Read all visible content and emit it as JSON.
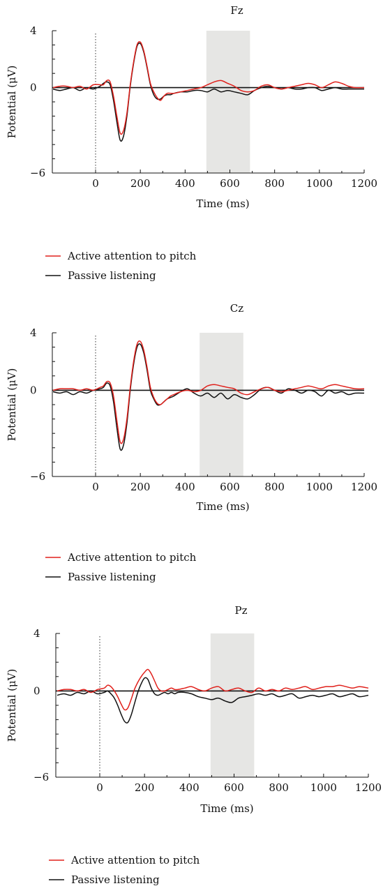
{
  "figure": {
    "legend": {
      "active_label": "Active attention to pitch",
      "passive_label": "Passive listening"
    }
  },
  "chart_data": [
    {
      "type": "line",
      "title": "Fz",
      "xlabel": "Time (ms)",
      "ylabel": "Potential (μV)",
      "xlim": [
        -190,
        1200
      ],
      "ylim": [
        -6,
        4
      ],
      "xticks": [
        0,
        200,
        400,
        600,
        800,
        1000,
        1200
      ],
      "xtick_labels": [
        "0",
        "200",
        "400",
        "600",
        "800",
        "1000",
        "1200"
      ],
      "yticks": [
        4,
        0,
        -6
      ],
      "ytick_labels": [
        "4",
        "0",
        "−6"
      ],
      "stimulus_onset": 0,
      "shaded_window": [
        495,
        690
      ],
      "grid": false,
      "legend_position": "bottom-left",
      "colors": {
        "active": "#e0201b",
        "passive": "#111111"
      },
      "series": [
        {
          "name": "Active attention to pitch",
          "color": "#e0201b",
          "x": [
            -190,
            -160,
            -130,
            -100,
            -70,
            -40,
            -10,
            20,
            35,
            50,
            65,
            80,
            95,
            110,
            125,
            140,
            155,
            170,
            185,
            200,
            215,
            230,
            245,
            260,
            275,
            290,
            305,
            320,
            335,
            350,
            380,
            410,
            440,
            470,
            500,
            530,
            560,
            590,
            620,
            650,
            680,
            710,
            740,
            770,
            800,
            830,
            860,
            890,
            920,
            950,
            980,
            1010,
            1040,
            1070,
            1100,
            1130,
            1160,
            1200
          ],
          "y": [
            0.0,
            0.1,
            0.1,
            0.0,
            0.1,
            -0.1,
            0.2,
            0.2,
            0.2,
            0.5,
            0.4,
            -0.6,
            -2.0,
            -3.2,
            -3.0,
            -1.8,
            0.2,
            1.8,
            3.0,
            3.2,
            2.6,
            1.5,
            0.3,
            -0.3,
            -0.7,
            -0.9,
            -0.6,
            -0.4,
            -0.4,
            -0.4,
            -0.3,
            -0.2,
            -0.1,
            0.0,
            0.2,
            0.4,
            0.5,
            0.3,
            0.1,
            -0.2,
            -0.3,
            -0.2,
            0.1,
            0.2,
            0.0,
            -0.1,
            0.0,
            0.1,
            0.2,
            0.3,
            0.2,
            0.0,
            0.2,
            0.4,
            0.3,
            0.1,
            0.0,
            0.0
          ]
        },
        {
          "name": "Passive listening",
          "color": "#111111",
          "x": [
            -190,
            -160,
            -130,
            -100,
            -70,
            -40,
            -10,
            20,
            35,
            50,
            65,
            80,
            95,
            110,
            125,
            140,
            155,
            170,
            185,
            200,
            215,
            230,
            245,
            260,
            275,
            290,
            305,
            320,
            335,
            350,
            380,
            410,
            440,
            470,
            500,
            530,
            560,
            590,
            620,
            650,
            680,
            710,
            740,
            770,
            800,
            830,
            860,
            890,
            920,
            950,
            980,
            1010,
            1040,
            1070,
            1100,
            1130,
            1160,
            1200
          ],
          "y": [
            -0.1,
            -0.2,
            -0.1,
            0.0,
            -0.2,
            0.0,
            -0.1,
            0.1,
            0.3,
            0.4,
            0.2,
            -0.9,
            -2.4,
            -3.7,
            -3.4,
            -2.0,
            0.1,
            1.7,
            2.9,
            3.1,
            2.5,
            1.4,
            0.2,
            -0.5,
            -0.8,
            -0.8,
            -0.6,
            -0.5,
            -0.5,
            -0.4,
            -0.3,
            -0.3,
            -0.2,
            -0.2,
            -0.3,
            -0.1,
            -0.3,
            -0.2,
            -0.3,
            -0.4,
            -0.5,
            -0.2,
            0.0,
            0.1,
            0.0,
            -0.1,
            0.0,
            -0.1,
            -0.1,
            0.0,
            0.0,
            -0.2,
            -0.1,
            0.0,
            -0.1,
            -0.1,
            -0.1,
            -0.1
          ]
        }
      ]
    },
    {
      "type": "line",
      "title": "Cz",
      "xlabel": "Time (ms)",
      "ylabel": "Potential (μV)",
      "xlim": [
        -190,
        1200
      ],
      "ylim": [
        -6,
        4
      ],
      "xticks": [
        0,
        200,
        400,
        600,
        800,
        1000,
        1200
      ],
      "xtick_labels": [
        "0",
        "200",
        "400",
        "600",
        "800",
        "1000",
        "1200"
      ],
      "yticks": [
        4,
        0,
        -6
      ],
      "ytick_labels": [
        "4",
        "0",
        "−6"
      ],
      "stimulus_onset": 0,
      "shaded_window": [
        465,
        660
      ],
      "grid": false,
      "legend_position": "bottom-left",
      "colors": {
        "active": "#e0201b",
        "passive": "#111111"
      },
      "series": [
        {
          "name": "Active attention to pitch",
          "color": "#e0201b",
          "x": [
            -190,
            -160,
            -130,
            -100,
            -70,
            -40,
            -10,
            20,
            35,
            50,
            65,
            80,
            95,
            110,
            125,
            140,
            155,
            170,
            185,
            200,
            215,
            230,
            245,
            260,
            275,
            290,
            305,
            320,
            335,
            350,
            380,
            410,
            440,
            470,
            500,
            530,
            560,
            590,
            620,
            650,
            680,
            710,
            740,
            770,
            800,
            830,
            860,
            890,
            920,
            950,
            980,
            1010,
            1040,
            1070,
            1100,
            1130,
            1160,
            1200
          ],
          "y": [
            0.0,
            0.1,
            0.1,
            0.1,
            0.0,
            0.1,
            0.0,
            0.2,
            0.3,
            0.6,
            0.5,
            -0.4,
            -2.1,
            -3.6,
            -3.4,
            -2.0,
            0.2,
            2.0,
            3.2,
            3.4,
            2.8,
            1.6,
            0.2,
            -0.5,
            -0.9,
            -1.0,
            -0.8,
            -0.6,
            -0.4,
            -0.3,
            -0.1,
            0.0,
            -0.1,
            0.0,
            0.3,
            0.4,
            0.3,
            0.2,
            0.1,
            -0.2,
            -0.3,
            -0.1,
            0.1,
            0.2,
            0.0,
            -0.1,
            0.0,
            0.1,
            0.2,
            0.3,
            0.2,
            0.1,
            0.3,
            0.4,
            0.3,
            0.2,
            0.1,
            0.1
          ]
        },
        {
          "name": "Passive listening",
          "color": "#111111",
          "x": [
            -190,
            -160,
            -130,
            -100,
            -70,
            -40,
            -10,
            20,
            35,
            50,
            65,
            80,
            95,
            110,
            125,
            140,
            155,
            170,
            185,
            200,
            215,
            230,
            245,
            260,
            275,
            290,
            305,
            320,
            335,
            350,
            380,
            410,
            440,
            470,
            500,
            530,
            560,
            590,
            620,
            650,
            680,
            710,
            740,
            770,
            800,
            830,
            860,
            890,
            920,
            950,
            980,
            1010,
            1040,
            1070,
            1100,
            1130,
            1160,
            1200
          ],
          "y": [
            -0.1,
            -0.2,
            -0.1,
            -0.3,
            -0.1,
            -0.2,
            0.0,
            0.1,
            0.2,
            0.5,
            0.3,
            -0.8,
            -2.6,
            -4.1,
            -3.8,
            -2.3,
            0.0,
            1.8,
            3.0,
            3.2,
            2.6,
            1.4,
            0.0,
            -0.6,
            -1.0,
            -1.0,
            -0.8,
            -0.6,
            -0.5,
            -0.4,
            -0.1,
            0.1,
            -0.2,
            -0.4,
            -0.2,
            -0.5,
            -0.2,
            -0.6,
            -0.3,
            -0.5,
            -0.6,
            -0.3,
            0.1,
            0.2,
            0.0,
            -0.2,
            0.1,
            0.0,
            -0.2,
            0.0,
            -0.1,
            -0.4,
            0.0,
            -0.2,
            -0.1,
            -0.3,
            -0.2,
            -0.2
          ]
        }
      ]
    },
    {
      "type": "line",
      "title": "Pz",
      "xlabel": "Time (ms)",
      "ylabel": "Potential (μV)",
      "xlim": [
        -190,
        1200
      ],
      "ylim": [
        -6,
        4
      ],
      "xticks": [
        0,
        200,
        400,
        600,
        800,
        1000,
        1200
      ],
      "xtick_labels": [
        "0",
        "200",
        "400",
        "600",
        "800",
        "1000",
        "1200"
      ],
      "yticks": [
        4,
        0,
        -6
      ],
      "ytick_labels": [
        "4",
        "0",
        "−6"
      ],
      "stimulus_onset": 0,
      "shaded_window": [
        495,
        690
      ],
      "grid": false,
      "legend_position": "bottom-left",
      "colors": {
        "active": "#e0201b",
        "passive": "#111111"
      },
      "series": [
        {
          "name": "Active attention to pitch",
          "color": "#e0201b",
          "x": [
            -190,
            -160,
            -130,
            -100,
            -70,
            -40,
            -10,
            20,
            35,
            50,
            65,
            80,
            95,
            110,
            125,
            140,
            155,
            170,
            185,
            200,
            215,
            230,
            245,
            260,
            275,
            290,
            305,
            320,
            335,
            350,
            380,
            410,
            440,
            470,
            500,
            530,
            560,
            590,
            620,
            650,
            680,
            710,
            740,
            770,
            800,
            830,
            860,
            890,
            920,
            950,
            980,
            1010,
            1040,
            1070,
            1100,
            1130,
            1160,
            1200
          ],
          "y": [
            0.0,
            0.1,
            0.1,
            0.0,
            0.1,
            -0.1,
            0.1,
            0.2,
            0.4,
            0.3,
            0.0,
            -0.4,
            -0.9,
            -1.3,
            -1.2,
            -0.6,
            0.1,
            0.6,
            1.0,
            1.3,
            1.5,
            1.2,
            0.7,
            0.2,
            0.0,
            0.0,
            0.1,
            0.2,
            0.1,
            0.1,
            0.2,
            0.3,
            0.1,
            0.0,
            0.2,
            0.3,
            0.0,
            0.1,
            0.2,
            0.0,
            -0.1,
            0.2,
            0.0,
            0.1,
            0.0,
            0.2,
            0.1,
            0.2,
            0.3,
            0.1,
            0.2,
            0.3,
            0.3,
            0.4,
            0.3,
            0.2,
            0.3,
            0.2
          ]
        },
        {
          "name": "Passive listening",
          "color": "#111111",
          "x": [
            -190,
            -160,
            -130,
            -100,
            -70,
            -40,
            -10,
            20,
            35,
            50,
            65,
            80,
            95,
            110,
            125,
            140,
            155,
            170,
            185,
            200,
            215,
            230,
            245,
            260,
            275,
            290,
            305,
            320,
            335,
            350,
            380,
            410,
            440,
            470,
            500,
            530,
            560,
            590,
            620,
            650,
            680,
            710,
            740,
            770,
            800,
            830,
            860,
            890,
            920,
            950,
            980,
            1010,
            1040,
            1070,
            1100,
            1130,
            1160,
            1200
          ],
          "y": [
            -0.3,
            -0.2,
            -0.3,
            -0.1,
            -0.2,
            0.0,
            -0.2,
            -0.1,
            0.0,
            -0.2,
            -0.5,
            -1.0,
            -1.6,
            -2.1,
            -2.2,
            -1.7,
            -0.9,
            -0.1,
            0.5,
            0.9,
            0.8,
            0.2,
            -0.2,
            -0.3,
            -0.2,
            -0.1,
            -0.2,
            -0.1,
            -0.2,
            -0.1,
            -0.1,
            -0.2,
            -0.4,
            -0.5,
            -0.6,
            -0.5,
            -0.7,
            -0.8,
            -0.5,
            -0.4,
            -0.3,
            -0.2,
            -0.3,
            -0.2,
            -0.4,
            -0.3,
            -0.2,
            -0.5,
            -0.4,
            -0.3,
            -0.4,
            -0.3,
            -0.2,
            -0.4,
            -0.3,
            -0.2,
            -0.4,
            -0.3
          ]
        }
      ]
    }
  ]
}
